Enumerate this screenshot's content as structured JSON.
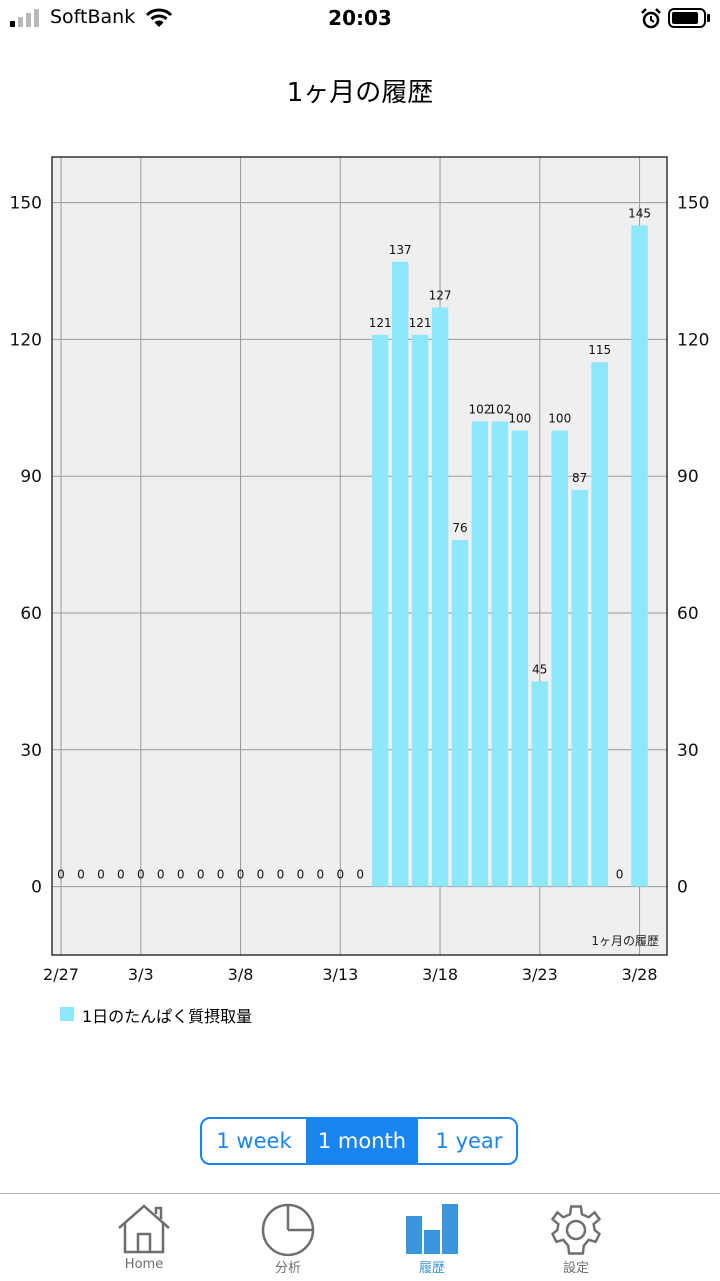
{
  "status_bar": {
    "carrier": "SoftBank",
    "time": "20:03",
    "icons": [
      "signal-icon",
      "wifi-icon",
      "alarm-icon",
      "battery-icon"
    ]
  },
  "page_title": "1ヶ月の履歴",
  "colors": {
    "bar": "#8ee8fb",
    "accent": "#1a84f0",
    "tab_active": "#3a95dc",
    "plot_bg": "#efefef"
  },
  "chart_data": {
    "type": "bar",
    "title": "",
    "watermark": "1ヶ月の履歴",
    "legend_label": "1日のたんぱく質摂取量",
    "legend_position": "bottom-left",
    "grid": true,
    "ylim": [
      -15,
      160
    ],
    "yticks": [
      0,
      30,
      60,
      90,
      120,
      150
    ],
    "xtick_labels": [
      "2/27",
      "3/3",
      "3/8",
      "3/13",
      "3/18",
      "3/23",
      "3/28"
    ],
    "categories": [
      "2/27",
      "2/28",
      "3/1",
      "3/2",
      "3/3",
      "3/4",
      "3/5",
      "3/6",
      "3/7",
      "3/8",
      "3/9",
      "3/10",
      "3/11",
      "3/12",
      "3/13",
      "3/14",
      "3/15",
      "3/16",
      "3/17",
      "3/18",
      "3/19",
      "3/20",
      "3/21",
      "3/22",
      "3/23",
      "3/24",
      "3/25",
      "3/26",
      "3/27",
      "3/28"
    ],
    "values": [
      0,
      0,
      0,
      0,
      0,
      0,
      0,
      0,
      0,
      0,
      0,
      0,
      0,
      0,
      0,
      0,
      121,
      137,
      121,
      127,
      76,
      102,
      102,
      100,
      45,
      100,
      87,
      115,
      0,
      145
    ]
  },
  "range_selector": {
    "options": [
      "1 week",
      "1 month",
      "1 year"
    ],
    "selected": "1 month"
  },
  "tab_bar": {
    "items": [
      "Home",
      "分析",
      "履歴",
      "設定"
    ],
    "active": "履歴"
  }
}
